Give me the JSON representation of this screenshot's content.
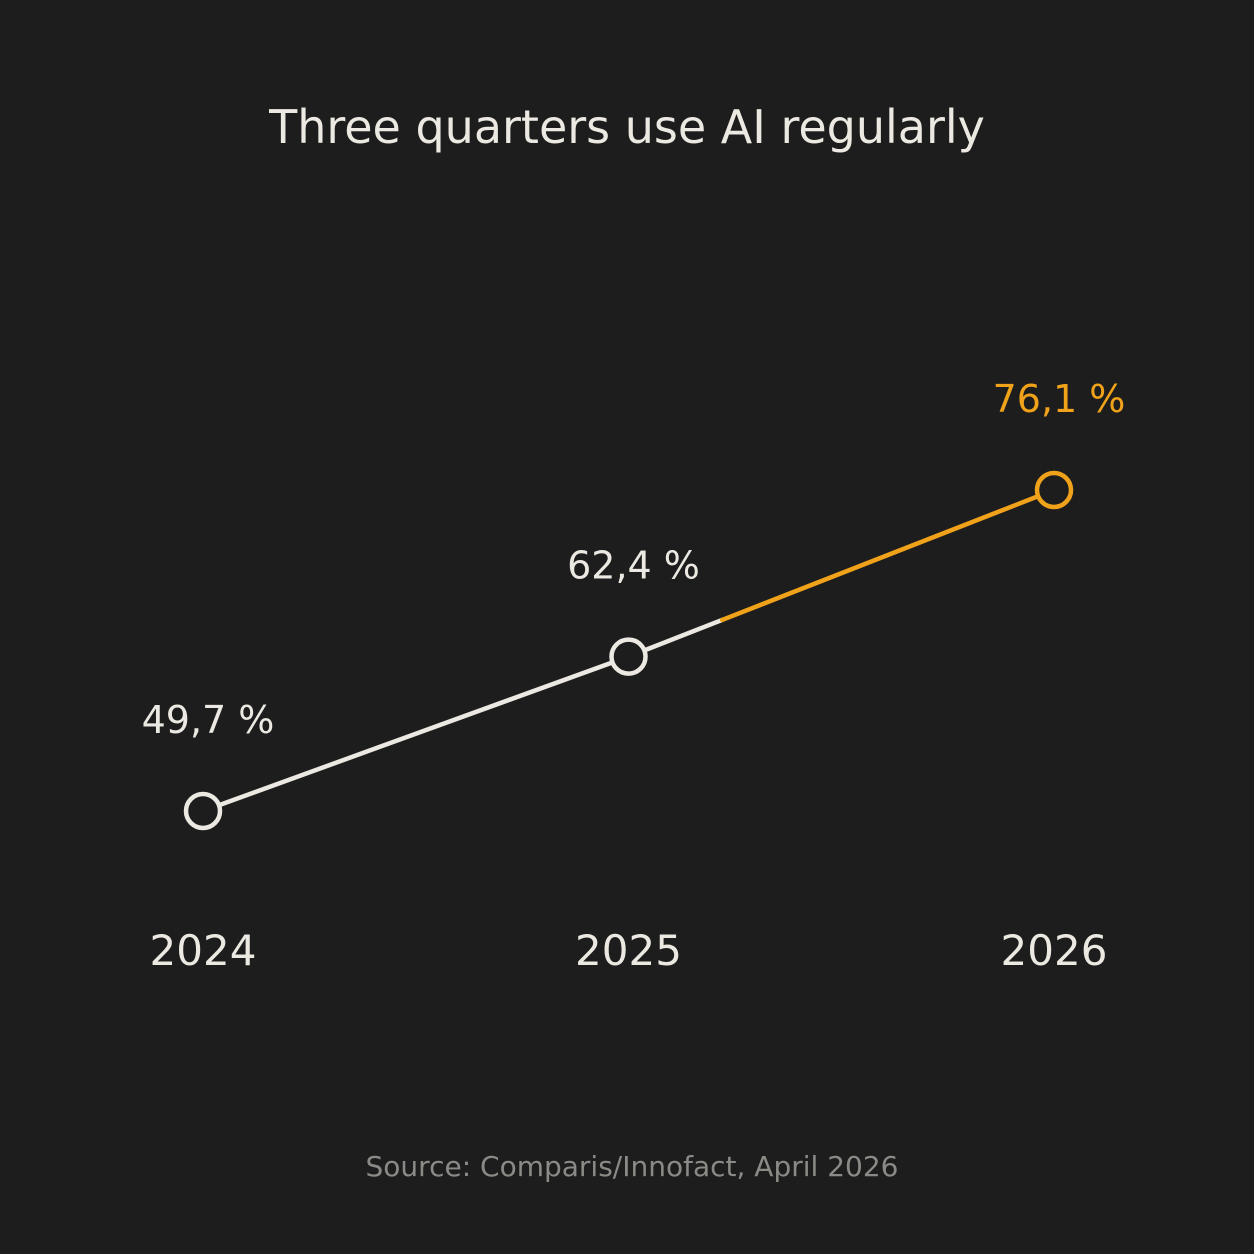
{
  "chart_data": {
    "type": "line",
    "title": "Three quarters use AI regularly",
    "categories": [
      "2024",
      "2025",
      "2026"
    ],
    "values": [
      49.7,
      62.4,
      76.1
    ],
    "value_labels": [
      "49,7 %",
      "62,4 %",
      "76,1 %"
    ],
    "highlight_index": 2,
    "grid": false,
    "legend": "none",
    "source": "Source: Comparis/Innofact, April 2026",
    "colors": {
      "background": "#1d1d1d",
      "base": "#ece9e2",
      "highlight": "#f0a21a",
      "source": "#8a8a86"
    }
  }
}
